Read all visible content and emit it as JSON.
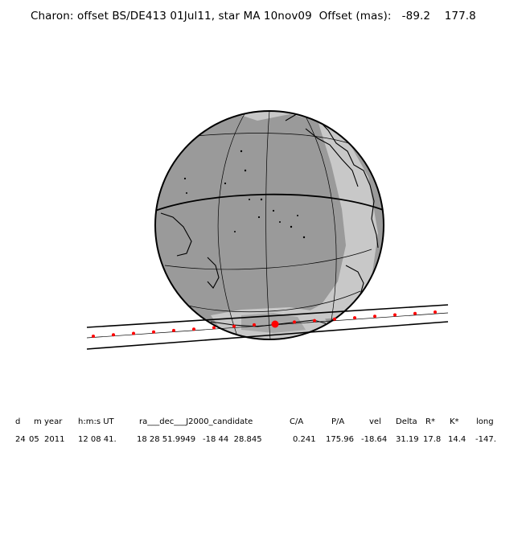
{
  "title": {
    "text": "Charon: offset BS/DE413 01Jul11, star MA 10nov09",
    "offset_label": "Offset (mas):",
    "offset_x": "-89.2",
    "offset_y": "177.8"
  },
  "table": {
    "headers": [
      "d",
      "m",
      "year",
      "h:m:s UT",
      "ra___dec___J2000_candidate",
      "C/A",
      "P/A",
      "vel",
      "Delta",
      "R*",
      "K*",
      "long"
    ],
    "values": [
      "24",
      "05",
      "2011",
      "12 08 41.",
      "18 28 51.9949",
      "-18 44  28.845",
      "0.241",
      "175.96",
      "-18.64",
      "31.19",
      "17.8",
      "14.4",
      "-147."
    ]
  },
  "colors": {
    "night": "#9a9a9a",
    "twilight": "#c8c8c8",
    "day": "#e2e2e2",
    "track_dot": "#ff0000",
    "lines": "#000000"
  }
}
